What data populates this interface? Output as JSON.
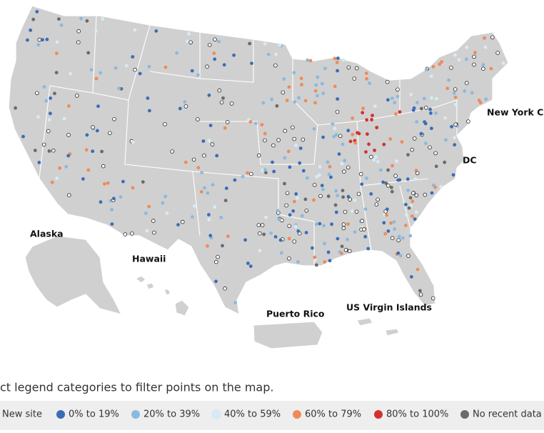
{
  "map": {
    "labels": [
      "New York Cit",
      "DC",
      "Alaska",
      "Hawaii",
      "Puerto Rico",
      "US Virgin Islands"
    ],
    "instruction": "ct legend categories to filter points on the map.",
    "legend": [
      {
        "label": "New site",
        "color": "#ffffff"
      },
      {
        "label": "0% to 19%",
        "color": "#3b6db5"
      },
      {
        "label": "20% to 39%",
        "color": "#8ab9df"
      },
      {
        "label": "40% to 59%",
        "color": "#d6ecf5"
      },
      {
        "label": "60% to 79%",
        "color": "#f08a58"
      },
      {
        "label": "80% to 100%",
        "color": "#d2322d"
      },
      {
        "label": "No recent data",
        "color": "#6a6a6a"
      }
    ]
  }
}
